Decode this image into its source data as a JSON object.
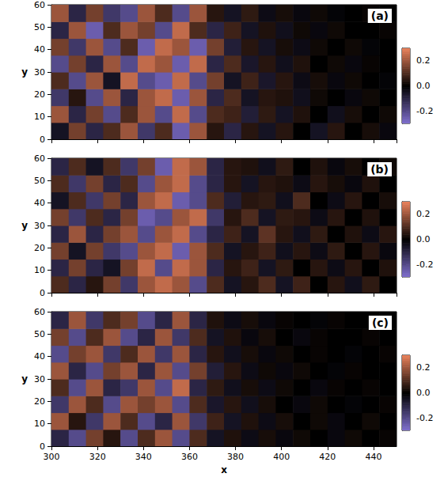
{
  "chart_data": [
    {
      "type": "heatmap",
      "title": "(a)",
      "y_label": "y",
      "tick_labels": "y",
      "xlim": [
        300,
        450
      ],
      "xticks": [
        300,
        320,
        340,
        360,
        380,
        400,
        420,
        440
      ],
      "ylim": [
        0,
        60
      ],
      "yticks": [
        0,
        10,
        20,
        30,
        40,
        50,
        60
      ],
      "x_bins": [
        300,
        307.5,
        315,
        322.5,
        330,
        337.5,
        345,
        352.5,
        360,
        367.5,
        375,
        382.5,
        390,
        397.5,
        405,
        412.5,
        420,
        427.5,
        435,
        442.5,
        450
      ],
      "y_bins": [
        0,
        7.5,
        15,
        22.5,
        30,
        37.5,
        45,
        52.5,
        60
      ],
      "values": [
        [
          -0.05,
          0.15,
          -0.1,
          0.1,
          0.2,
          -0.15,
          0.1,
          -0.25,
          0.2,
          0.05,
          -0.1,
          0.05,
          -0.05,
          0.05,
          0,
          -0.05,
          0.05,
          0,
          0.03,
          -0.02
        ],
        [
          0.2,
          -0.1,
          0.15,
          -0.2,
          0.1,
          0.2,
          -0.2,
          0.25,
          -0.2,
          0.1,
          0.08,
          -0.08,
          0.06,
          -0.05,
          0.04,
          0,
          -0.04,
          0.03,
          0,
          0.02
        ],
        [
          -0.15,
          0.05,
          -0.2,
          0.2,
          -0.1,
          0.2,
          0.25,
          -0.25,
          0.2,
          -0.1,
          0.1,
          -0.05,
          0.05,
          0.04,
          -0.04,
          0.02,
          0,
          -0.02,
          0.02,
          0
        ],
        [
          0.1,
          -0.2,
          0.2,
          -0.05,
          0.25,
          -0.2,
          -0.25,
          0.25,
          -0.2,
          0.15,
          -0.05,
          0.08,
          -0.06,
          0.05,
          -0.03,
          0.03,
          -0.02,
          0.02,
          0,
          -0.01
        ],
        [
          -0.2,
          0.15,
          -0.1,
          0.2,
          -0.2,
          0.25,
          0.2,
          -0.25,
          0.25,
          -0.1,
          0.1,
          -0.06,
          0.05,
          -0.04,
          0.04,
          0,
          0.02,
          -0.02,
          0.01,
          0
        ],
        [
          0.15,
          -0.15,
          0.2,
          -0.2,
          0.1,
          -0.25,
          0.25,
          0.2,
          -0.25,
          0.15,
          -0.08,
          0.05,
          -0.05,
          0.03,
          -0.03,
          0.02,
          0,
          0.02,
          -0.01,
          0
        ],
        [
          -0.1,
          0.2,
          -0.25,
          0.1,
          0.2,
          0.15,
          -0.2,
          0.25,
          0.1,
          -0.1,
          0.08,
          -0.05,
          0.04,
          -0.04,
          0.02,
          -0.02,
          0.02,
          0,
          0,
          0.01
        ],
        [
          0.2,
          -0.1,
          0.15,
          -0.15,
          -0.2,
          0.2,
          0.1,
          -0.2,
          0.2,
          0.05,
          -0.05,
          0.06,
          -0.03,
          0.03,
          -0.02,
          0.02,
          -0.01,
          0,
          0.01,
          0
        ]
      ],
      "colors": [
        "#8070d0",
        "#000000",
        "#e8805a"
      ],
      "colorbar_range": [
        -0.3,
        0.3
      ],
      "colorbar_ticks": [
        -0.2,
        {
          "value": 0,
          "label": "0.0"
        },
        0.2
      ]
    },
    {
      "type": "heatmap",
      "title": "(b)",
      "y_label": "y",
      "tick_labels": "y",
      "xlim": [
        300,
        450
      ],
      "xticks": [
        300,
        320,
        340,
        360,
        380,
        400,
        420,
        440
      ],
      "ylim": [
        0,
        60
      ],
      "yticks": [
        0,
        10,
        20,
        30,
        40,
        50,
        60
      ],
      "x_bins": [
        300,
        307.5,
        315,
        322.5,
        330,
        337.5,
        345,
        352.5,
        360,
        367.5,
        375,
        382.5,
        390,
        397.5,
        405,
        412.5,
        420,
        427.5,
        435,
        442.5,
        450
      ],
      "y_bins": [
        0,
        7.5,
        15,
        22.5,
        30,
        37.5,
        45,
        52.5,
        60
      ],
      "values": [
        [
          0.1,
          -0.1,
          0.05,
          0.15,
          -0.15,
          0.2,
          0.25,
          0.2,
          -0.2,
          0.1,
          -0.05,
          0.05,
          0.1,
          -0.05,
          0.08,
          0,
          0.05,
          -0.04,
          0.06,
          0
        ],
        [
          -0.1,
          0.15,
          -0.1,
          -0.05,
          0.15,
          0.25,
          -0.2,
          0.25,
          0.2,
          -0.1,
          0.05,
          0.08,
          -0.05,
          0.06,
          0,
          0.05,
          -0.03,
          0.05,
          0,
          0.04
        ],
        [
          0.15,
          -0.05,
          0.15,
          -0.15,
          -0.2,
          0.2,
          0.25,
          -0.25,
          0.2,
          0.1,
          -0.05,
          0.05,
          0.08,
          -0.04,
          0.05,
          -0.03,
          0.06,
          0,
          0.05,
          -0.02
        ],
        [
          -0.1,
          0.2,
          -0.1,
          0.15,
          0.2,
          -0.2,
          0.2,
          0.25,
          -0.2,
          -0.1,
          0.08,
          -0.05,
          0.12,
          0.05,
          -0.04,
          0.06,
          0,
          0.04,
          -0.03,
          0.05
        ],
        [
          0.15,
          -0.15,
          0.1,
          -0.1,
          0.15,
          -0.25,
          -0.2,
          0.2,
          0.25,
          -0.15,
          0.05,
          0.1,
          -0.05,
          0.06,
          0.05,
          -0.03,
          0.05,
          0,
          0.04,
          0
        ],
        [
          -0.05,
          0.1,
          -0.15,
          0.15,
          -0.1,
          0.2,
          0.25,
          -0.25,
          -0.2,
          0.1,
          -0.08,
          0.05,
          0.06,
          -0.04,
          0.1,
          0,
          -0.03,
          0.05,
          0,
          0.03
        ],
        [
          0.1,
          -0.15,
          0.15,
          -0.1,
          0.1,
          -0.2,
          0.2,
          0.25,
          -0.2,
          -0.1,
          0.05,
          -0.05,
          0.05,
          0.04,
          -0.03,
          0.05,
          0.03,
          -0.02,
          0.04,
          0
        ],
        [
          -0.1,
          0.1,
          -0.05,
          0.1,
          -0.15,
          0.15,
          -0.25,
          0.25,
          0.2,
          -0.1,
          0.05,
          0.04,
          -0.04,
          0.06,
          0,
          0.04,
          -0.02,
          0.03,
          0,
          0.02
        ]
      ],
      "colors": [
        "#8070d0",
        "#000000",
        "#e8805a"
      ],
      "colorbar_range": [
        -0.3,
        0.3
      ],
      "colorbar_ticks": [
        -0.2,
        {
          "value": 0,
          "label": "0.0"
        },
        0.2
      ]
    },
    {
      "type": "heatmap",
      "title": "(c)",
      "x_label": "x",
      "y_label": "y",
      "xlim": [
        300,
        450
      ],
      "xticks": [
        300,
        320,
        340,
        360,
        380,
        400,
        420,
        440
      ],
      "ylim": [
        0,
        60
      ],
      "yticks": [
        0,
        10,
        20,
        30,
        40,
        50,
        60
      ],
      "x_bins": [
        300,
        307.5,
        315,
        322.5,
        330,
        337.5,
        345,
        352.5,
        360,
        367.5,
        375,
        382.5,
        390,
        397.5,
        405,
        412.5,
        420,
        427.5,
        435,
        442.5,
        450
      ],
      "y_bins": [
        0,
        7.5,
        15,
        22.5,
        30,
        37.5,
        45,
        52.5,
        60
      ],
      "values": [
        [
          -0.1,
          -0.2,
          0.15,
          0.05,
          -0.2,
          0.1,
          0.2,
          -0.2,
          0.1,
          -0.05,
          0.04,
          -0.03,
          0.03,
          -0.02,
          0.02,
          0,
          -0.02,
          0.02,
          0,
          0.01
        ],
        [
          0.2,
          0.05,
          -0.15,
          0.2,
          0.1,
          -0.2,
          -0.1,
          0.2,
          -0.15,
          0.08,
          -0.05,
          0.04,
          -0.03,
          0.03,
          0,
          0.02,
          -0.02,
          0,
          0.02,
          0
        ],
        [
          -0.15,
          0.2,
          0.1,
          -0.2,
          0.2,
          0.15,
          0.2,
          -0.2,
          0.1,
          -0.06,
          0.05,
          -0.04,
          0.03,
          0,
          -0.02,
          0.02,
          0,
          -0.01,
          0,
          0.01
        ],
        [
          0.1,
          -0.2,
          0.2,
          -0.1,
          -0.15,
          0.2,
          -0.2,
          0.25,
          -0.1,
          0.06,
          -0.04,
          0.03,
          -0.03,
          0.02,
          0,
          -0.02,
          0.01,
          0,
          0.01,
          0
        ],
        [
          0.2,
          -0.1,
          -0.2,
          0.15,
          0.2,
          -0.1,
          0.2,
          -0.2,
          0.15,
          -0.08,
          0.05,
          -0.03,
          0.02,
          -0.02,
          0.02,
          0,
          -0.01,
          0.01,
          0,
          0
        ],
        [
          -0.2,
          0.15,
          0.2,
          -0.15,
          0.1,
          0.2,
          -0.15,
          0.2,
          -0.1,
          0.05,
          -0.04,
          0.03,
          -0.02,
          0.02,
          0,
          0.01,
          0,
          -0.01,
          0,
          0.01
        ],
        [
          0.15,
          -0.2,
          0.1,
          0.2,
          -0.2,
          -0.1,
          0.2,
          -0.15,
          0.1,
          -0.05,
          0.04,
          -0.02,
          0.03,
          0,
          -0.02,
          0.01,
          0,
          0,
          0.01,
          0
        ],
        [
          -0.1,
          0.2,
          -0.15,
          0.1,
          0.15,
          -0.2,
          -0.1,
          0.2,
          -0.1,
          0.04,
          -0.03,
          0.03,
          -0.02,
          0.01,
          0,
          -0.01,
          0.01,
          0,
          0,
          0
        ]
      ],
      "colors": [
        "#8070d0",
        "#000000",
        "#e8805a"
      ],
      "colorbar_range": [
        -0.3,
        0.3
      ],
      "colorbar_ticks": [
        -0.2,
        {
          "value": 0,
          "label": "0.0"
        },
        0.2
      ]
    }
  ]
}
